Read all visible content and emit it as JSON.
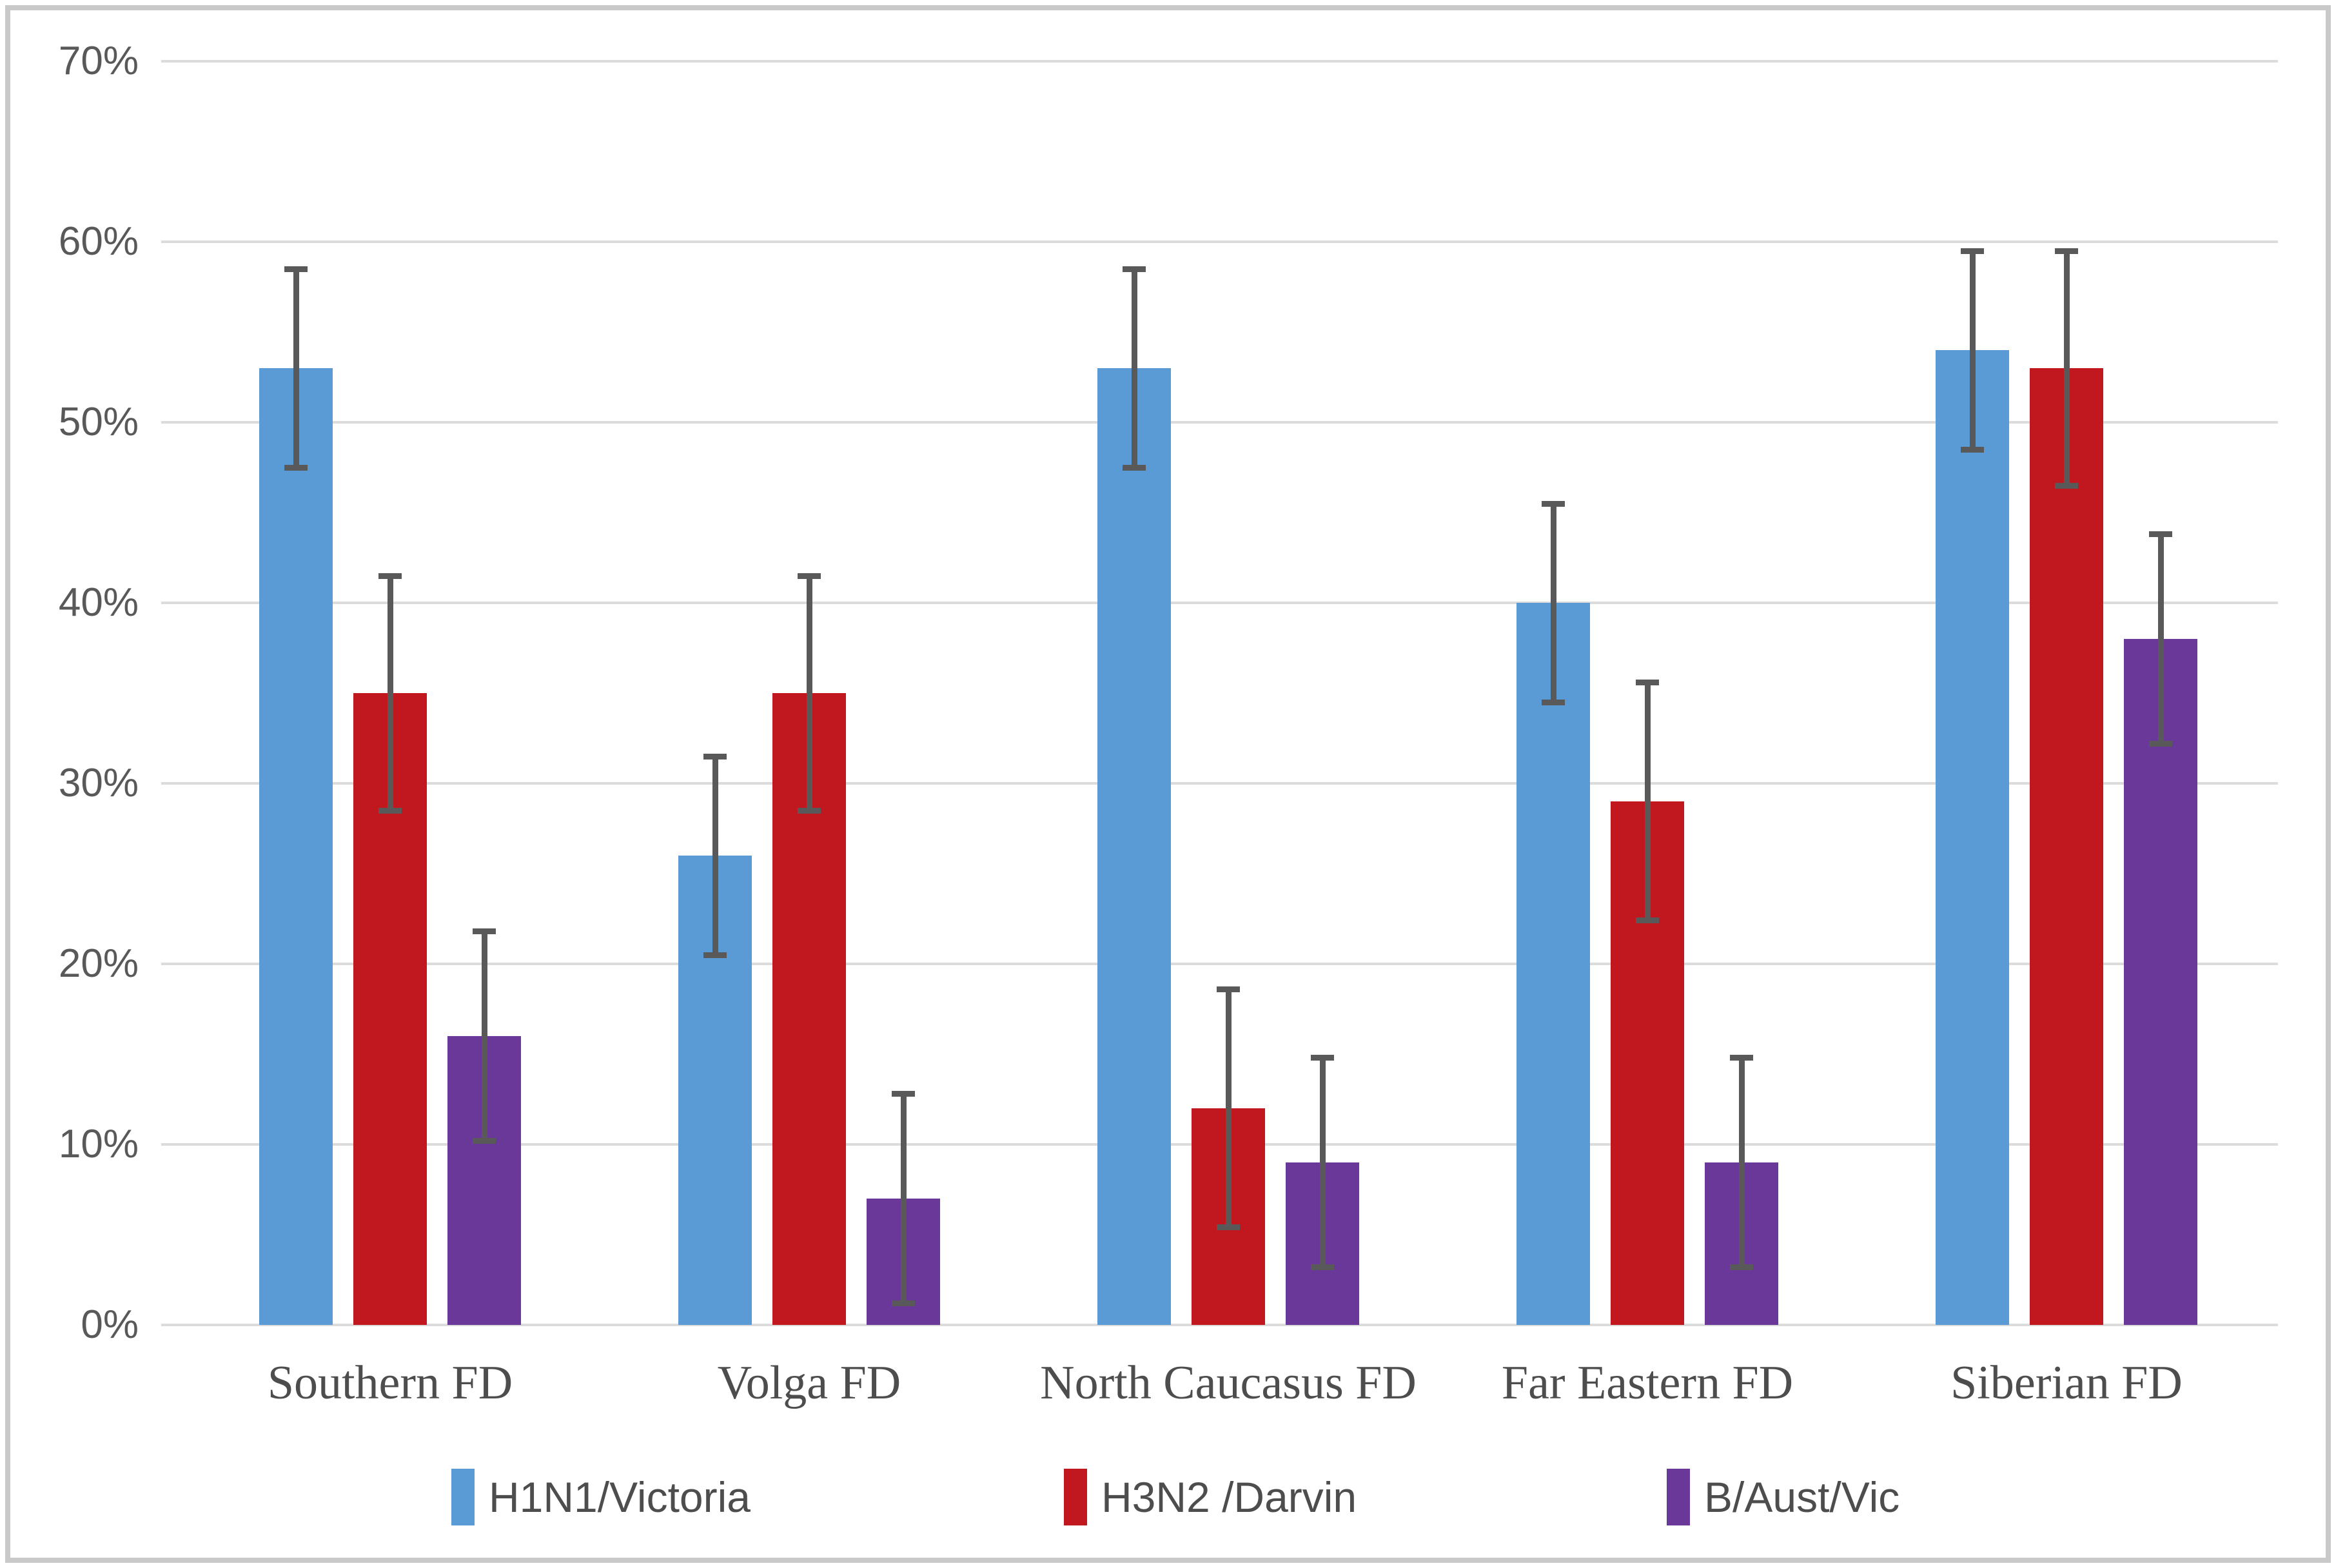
{
  "chart_data": {
    "type": "bar",
    "title": "",
    "xlabel": "",
    "ylabel": "",
    "categories": [
      "Southern FD",
      "Volga FD",
      "North Caucasus FD",
      "Far Eastern FD",
      "Siberian FD"
    ],
    "series": [
      {
        "name": "H1N1/Victoria",
        "color": "#5B9BD5",
        "values": [
          53,
          26,
          53,
          40,
          54
        ],
        "error_low": [
          47.5,
          20.5,
          47.5,
          34.5,
          48.5
        ],
        "error_high": [
          58.5,
          31.5,
          58.5,
          45.5,
          59.5
        ]
      },
      {
        "name": "H3N2 /Darvin",
        "color": "#C0181E",
        "values": [
          35,
          35,
          12,
          29,
          53
        ],
        "error_low": [
          28.5,
          28.5,
          5.4,
          22.4,
          46.5
        ],
        "error_high": [
          41.5,
          41.5,
          18.6,
          35.6,
          59.5
        ]
      },
      {
        "name": "B/Aust/Vic",
        "color": "#693899",
        "values": [
          16,
          7,
          9,
          9,
          38
        ],
        "error_low": [
          10.2,
          1.2,
          3.2,
          3.2,
          32.2
        ],
        "error_high": [
          21.8,
          12.8,
          14.8,
          14.8,
          43.8
        ]
      }
    ],
    "y_ticks": [
      "0%",
      "10%",
      "20%",
      "30%",
      "40%",
      "50%",
      "60%",
      "70%"
    ],
    "ylim": [
      0,
      70
    ],
    "grid": true,
    "error_bars": true,
    "legend_position": "bottom"
  },
  "style": {
    "gridline_color": "#dcdcdc",
    "error_bar_color": "#595959",
    "axis_text_color": "#595959",
    "category_text_color": "#4d4d4d",
    "border_color": "#c9c9c9",
    "background": "#ffffff"
  }
}
